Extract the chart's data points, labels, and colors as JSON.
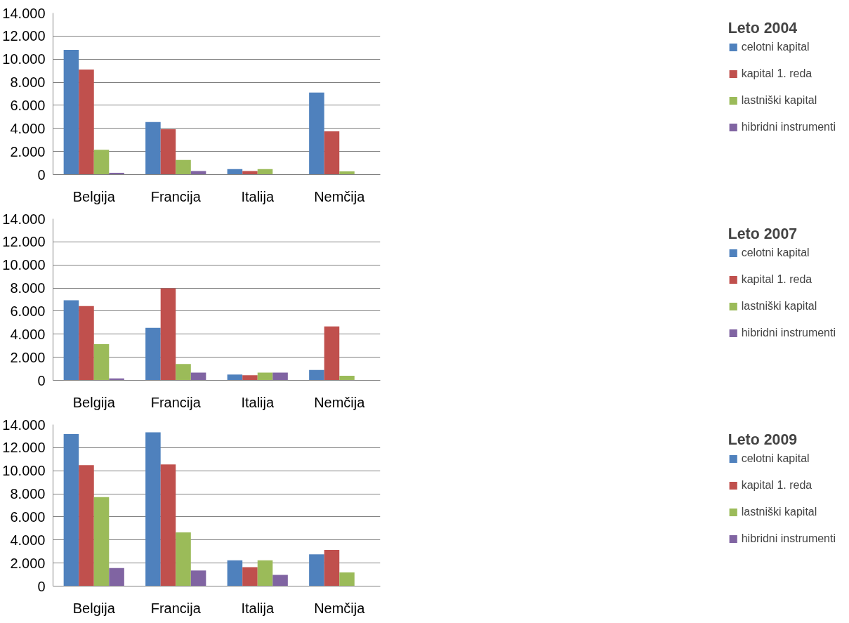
{
  "chart_data": [
    {
      "type": "bar",
      "legend_title": "Leto 2004",
      "categories": [
        "Belgija",
        "Francija",
        "Italija",
        "Nemčija"
      ],
      "ylim": [
        0,
        14000
      ],
      "yticks": [
        0,
        {
          "value": 2000,
          "label": "2.000"
        },
        {
          "value": 4000,
          "label": "4.000"
        },
        {
          "value": 6000,
          "label": "6.000"
        },
        {
          "value": 8000,
          "label": "8.000"
        },
        {
          "value": 10000,
          "label": "10.000"
        },
        {
          "value": 12000,
          "label": "12.000"
        },
        {
          "value": 14000,
          "label": "14.000"
        }
      ],
      "grid": "y",
      "legend": "right",
      "series": [
        {
          "name": "celotni kapital",
          "color": "#4f81bd",
          "values": [
            10800,
            4550,
            470,
            7100
          ]
        },
        {
          "name": "kapital 1. reda",
          "color": "#c0504d",
          "values": [
            9100,
            3930,
            300,
            3750
          ]
        },
        {
          "name": "lastniški kapital",
          "color": "#9bbb59",
          "values": [
            2150,
            1270,
            470,
            270
          ]
        },
        {
          "name": "hibridni instrumenti",
          "color": "#8064a2",
          "values": [
            150,
            300,
            0,
            0
          ]
        }
      ]
    },
    {
      "type": "bar",
      "legend_title": "Leto 2007",
      "categories": [
        "Belgija",
        "Francija",
        "Italija",
        "Nemčija"
      ],
      "ylim": [
        0,
        14000
      ],
      "yticks": [
        0,
        {
          "value": 2000,
          "label": "2.000"
        },
        {
          "value": 4000,
          "label": "4.000"
        },
        {
          "value": 6000,
          "label": "6.000"
        },
        {
          "value": 8000,
          "label": "8.000"
        },
        {
          "value": 10000,
          "label": "10.000"
        },
        {
          "value": 12000,
          "label": "12.000"
        },
        {
          "value": 14000,
          "label": "14.000"
        }
      ],
      "grid": "y",
      "legend": "right",
      "series": [
        {
          "name": "celotni kapital",
          "color": "#4f81bd",
          "values": [
            6940,
            4550,
            500,
            900
          ]
        },
        {
          "name": "kapital 1. reda",
          "color": "#c0504d",
          "values": [
            6430,
            7980,
            440,
            4670
          ]
        },
        {
          "name": "lastniški kapital",
          "color": "#9bbb59",
          "values": [
            3130,
            1410,
            670,
            400
          ]
        },
        {
          "name": "hibridni instrumenti",
          "color": "#8064a2",
          "values": [
            170,
            670,
            670,
            0
          ]
        }
      ]
    },
    {
      "type": "bar",
      "legend_title": "Leto 2009",
      "categories": [
        "Belgija",
        "Francija",
        "Italija",
        "Nemčija"
      ],
      "ylim": [
        0,
        14000
      ],
      "yticks": [
        0,
        {
          "value": 2000,
          "label": "2.000"
        },
        {
          "value": 4000,
          "label": "4.000"
        },
        {
          "value": 6000,
          "label": "6.000"
        },
        {
          "value": 8000,
          "label": "8.000"
        },
        {
          "value": 10000,
          "label": "10.000"
        },
        {
          "value": 12000,
          "label": "12.000"
        },
        {
          "value": 14000,
          "label": "14.000"
        }
      ],
      "grid": "y",
      "legend": "right",
      "series": [
        {
          "name": "celotni kapital",
          "color": "#4f81bd",
          "values": [
            13180,
            13330,
            2230,
            2760
          ]
        },
        {
          "name": "kapital 1. reda",
          "color": "#c0504d",
          "values": [
            10490,
            10550,
            1650,
            3130
          ]
        },
        {
          "name": "lastniški kapital",
          "color": "#9bbb59",
          "values": [
            7710,
            4650,
            2230,
            1190
          ]
        },
        {
          "name": "hibridni instrumenti",
          "color": "#8064a2",
          "values": [
            1560,
            1350,
            980,
            0
          ]
        }
      ]
    }
  ]
}
